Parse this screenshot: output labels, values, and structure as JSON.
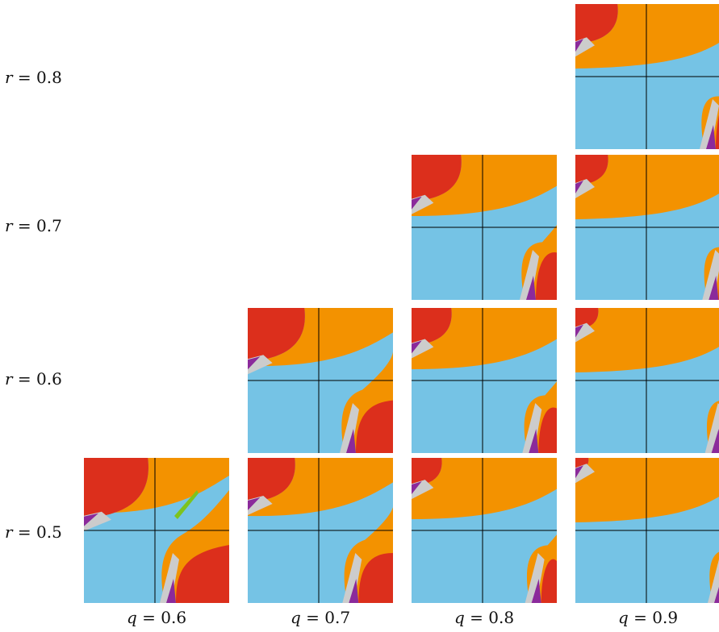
{
  "colors": {
    "blue": "#75C3E5",
    "red": "#DC2F1C",
    "orange": "#F39200",
    "purple": "#8B2A9B",
    "gray": "#CCCCCC",
    "green": "#7DC31E",
    "axis": "#000000"
  },
  "rows": [
    {
      "var": "r",
      "eq": "= 0.8"
    },
    {
      "var": "r",
      "eq": "= 0.7"
    },
    {
      "var": "r",
      "eq": "= 0.6"
    },
    {
      "var": "r",
      "eq": "= 0.5"
    }
  ],
  "cols": [
    {
      "var": "q",
      "eq": "= 0.6"
    },
    {
      "var": "q",
      "eq": "= 0.7"
    },
    {
      "var": "q",
      "eq": "= 0.8"
    },
    {
      "var": "q",
      "eq": "= 0.9"
    }
  ],
  "panels": [
    {
      "q": 0.6,
      "r": 0.5
    },
    {
      "q": 0.7,
      "r": 0.5
    },
    {
      "q": 0.7,
      "r": 0.6
    },
    {
      "q": 0.8,
      "r": 0.5
    },
    {
      "q": 0.8,
      "r": 0.6
    },
    {
      "q": 0.8,
      "r": 0.7
    },
    {
      "q": 0.9,
      "r": 0.5
    },
    {
      "q": 0.9,
      "r": 0.6
    },
    {
      "q": 0.9,
      "r": 0.7
    },
    {
      "q": 0.9,
      "r": 0.8
    }
  ]
}
